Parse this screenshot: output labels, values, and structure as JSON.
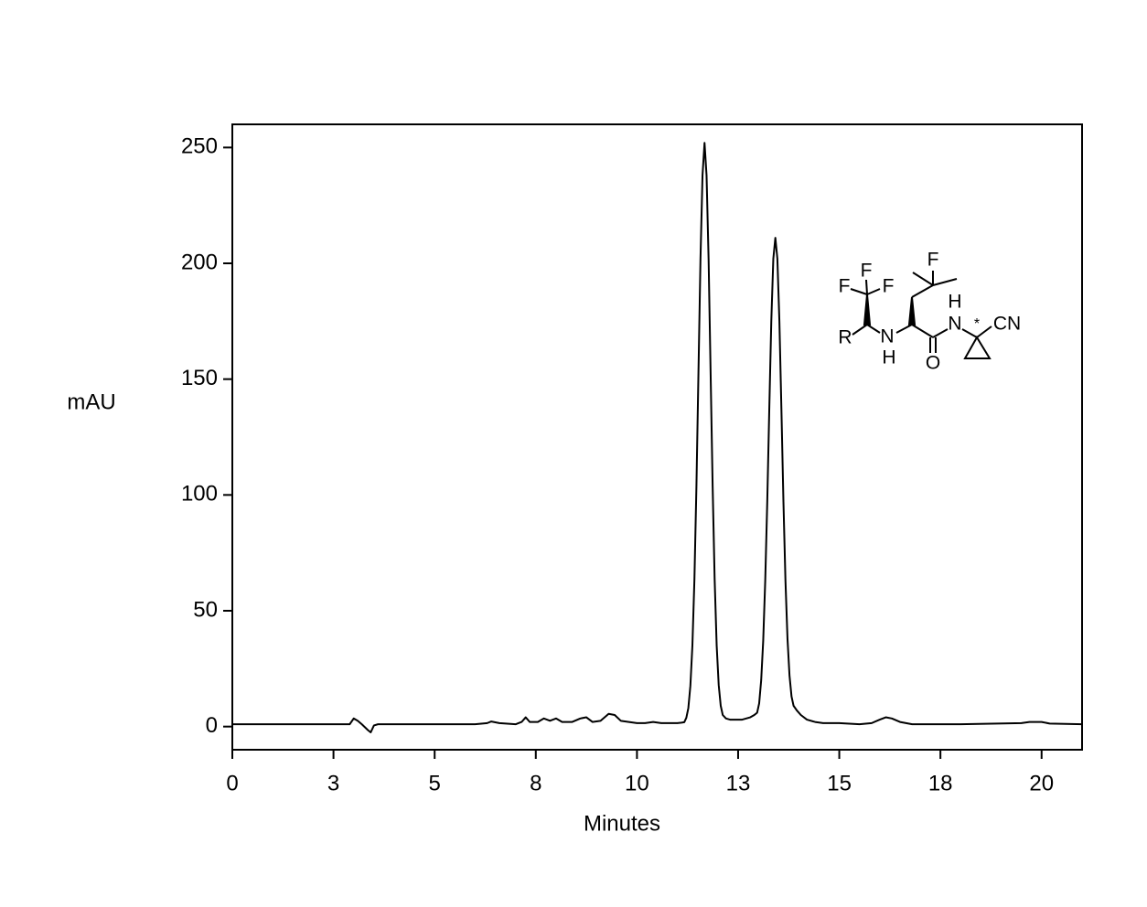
{
  "chart_data": {
    "type": "line",
    "xlabel": "Minutes",
    "ylabel": "mAU",
    "color": "#000000",
    "xlim": [
      0,
      21
    ],
    "ylim": [
      -10,
      260
    ],
    "xticks": [
      0,
      {
        "value": 2.5,
        "label": "3"
      },
      5,
      {
        "value": 7.5,
        "label": "8"
      },
      10,
      {
        "value": 12.5,
        "label": "13"
      },
      15,
      {
        "value": 17.5,
        "label": "18"
      },
      20
    ],
    "yticks": [
      0,
      50,
      100,
      150,
      200,
      250
    ],
    "x": [
      0,
      2.9,
      3.0,
      3.1,
      3.2,
      3.35,
      3.42,
      3.5,
      3.6,
      6.0,
      6.3,
      6.4,
      6.6,
      7.0,
      7.15,
      7.25,
      7.35,
      7.55,
      7.7,
      7.85,
      8.0,
      8.15,
      8.4,
      8.6,
      8.75,
      8.9,
      9.1,
      9.3,
      9.45,
      9.6,
      9.8,
      10.0,
      10.2,
      10.4,
      10.6,
      10.8,
      11.0,
      11.1,
      11.17,
      11.22,
      11.27,
      11.32,
      11.37,
      11.42,
      11.47,
      11.52,
      11.57,
      11.62,
      11.67,
      11.72,
      11.77,
      11.82,
      11.87,
      11.92,
      11.97,
      12.02,
      12.07,
      12.12,
      12.2,
      12.3,
      12.4,
      12.5,
      12.6,
      12.7,
      12.8,
      12.9,
      12.97,
      13.02,
      13.07,
      13.12,
      13.17,
      13.22,
      13.27,
      13.32,
      13.37,
      13.42,
      13.47,
      13.52,
      13.57,
      13.62,
      13.67,
      13.72,
      13.77,
      13.82,
      13.87,
      13.95,
      14.05,
      14.2,
      14.4,
      14.6,
      15.0,
      15.5,
      15.8,
      16.0,
      16.15,
      16.3,
      16.5,
      16.8,
      18.0,
      19.5,
      19.7,
      20.0,
      20.2,
      21.0
    ],
    "values": [
      1,
      1,
      3.5,
      2.5,
      1,
      -1.5,
      -2.5,
      0.5,
      1,
      1,
      1.5,
      2.2,
      1.5,
      1,
      2,
      4,
      2,
      2,
      3.5,
      2.5,
      3.5,
      2,
      2,
      3.5,
      4,
      2,
      2.5,
      5.5,
      5,
      2.5,
      2,
      1.5,
      1.5,
      2,
      1.5,
      1.5,
      1.5,
      1.7,
      1.9,
      3.8,
      8,
      17.6,
      35,
      63.5,
      104,
      153,
      202,
      238,
      252,
      238,
      202,
      153,
      104,
      63.5,
      35,
      18,
      9,
      5,
      3.5,
      3,
      3,
      3,
      3,
      3.5,
      4,
      5,
      6,
      10,
      20,
      37,
      63,
      97,
      137,
      175,
      202,
      211,
      202,
      175,
      137,
      97,
      63,
      38,
      22,
      13,
      9,
      7,
      5,
      3,
      2,
      1.5,
      1.5,
      1,
      1.5,
      3,
      4,
      3.5,
      2,
      1,
      1,
      1.5,
      2,
      2,
      1.3,
      1
    ],
    "structure": {
      "labels": [
        "F",
        "F",
        "F",
        "R",
        "N",
        "H",
        "O",
        "H",
        "N",
        "*",
        "CN",
        "F"
      ]
    }
  }
}
